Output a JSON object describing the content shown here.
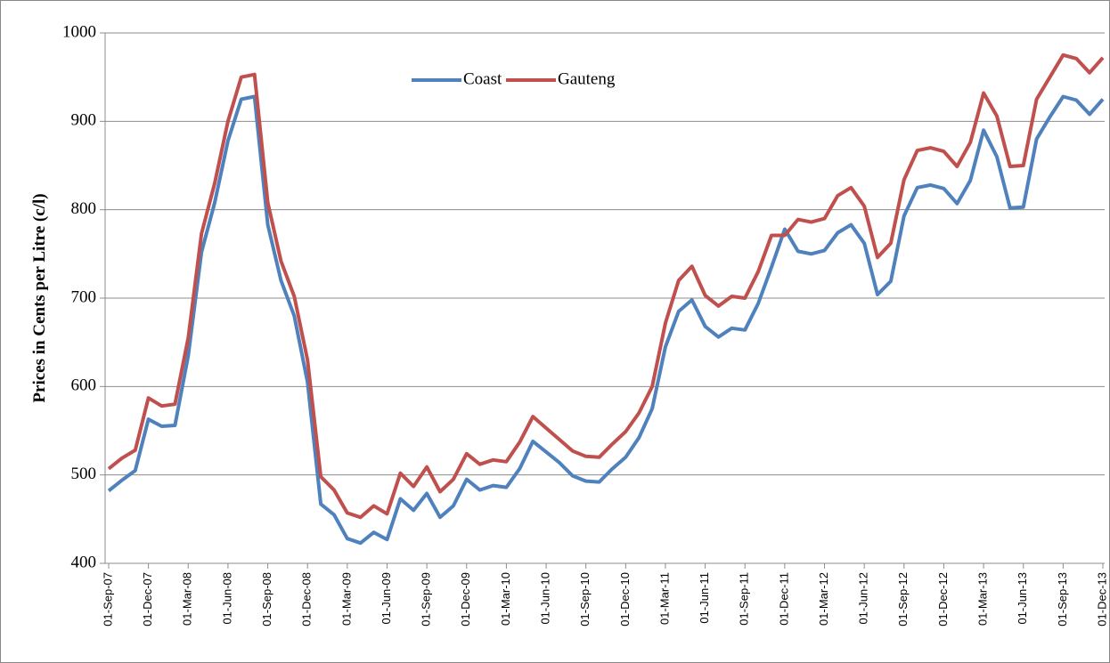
{
  "chart_data": {
    "type": "line",
    "y_label": "Prices in Cents per Litre (c/l)",
    "categories": [
      "01-Sep-07",
      null,
      null,
      "01-Dec-07",
      null,
      null,
      "01-Mar-08",
      null,
      null,
      "01-Jun-08",
      null,
      null,
      "01-Sep-08",
      null,
      null,
      "01-Dec-08",
      null,
      null,
      "01-Mar-09",
      null,
      null,
      "01-Jun-09",
      null,
      null,
      "01-Sep-09",
      null,
      null,
      "01-Dec-09",
      null,
      null,
      "01-Mar-10",
      null,
      null,
      "01-Jun-10",
      null,
      null,
      "01-Sep-10",
      null,
      null,
      "01-Dec-10",
      null,
      null,
      "01-Mar-11",
      null,
      null,
      "01-Jun-11",
      null,
      null,
      "01-Sep-11",
      null,
      null,
      "01-Dec-11",
      null,
      null,
      "01-Mar-12",
      null,
      null,
      "01-Jun-12",
      null,
      null,
      "01-Sep-12",
      null,
      null,
      "01-Dec-12",
      null,
      null,
      "01-Mar-13",
      null,
      null,
      "01-Jun-13",
      null,
      null,
      "01-Sep-13",
      null,
      null,
      "01-Dec-13"
    ],
    "series": [
      {
        "name": "Coast",
        "color": "#4f81bd",
        "values": [
          482,
          494,
          505,
          563,
          555,
          556,
          635,
          752,
          808,
          878,
          925,
          928,
          783,
          720,
          680,
          605,
          467,
          455,
          428,
          423,
          435,
          427,
          473,
          460,
          479,
          452,
          465,
          495,
          483,
          488,
          486,
          507,
          538,
          526,
          514,
          499,
          493,
          492,
          507,
          520,
          542,
          575,
          645,
          685,
          698,
          668,
          656,
          666,
          664,
          694,
          735,
          778,
          753,
          750,
          754,
          774,
          783,
          762,
          704,
          719,
          793,
          825,
          828,
          824,
          807,
          833,
          890,
          860,
          802,
          803,
          880,
          905,
          928,
          924,
          908,
          925
        ]
      },
      {
        "name": "Gauteng",
        "color": "#c0504d",
        "values": [
          507,
          519,
          528,
          587,
          578,
          580,
          655,
          773,
          830,
          900,
          950,
          953,
          808,
          742,
          702,
          630,
          498,
          483,
          457,
          452,
          465,
          456,
          502,
          487,
          509,
          481,
          495,
          524,
          512,
          517,
          515,
          537,
          566,
          553,
          540,
          527,
          521,
          520,
          535,
          549,
          570,
          600,
          672,
          720,
          736,
          703,
          691,
          702,
          700,
          730,
          771,
          771,
          789,
          786,
          790,
          816,
          825,
          804,
          746,
          762,
          834,
          867,
          870,
          866,
          849,
          876,
          932,
          906,
          849,
          850,
          925,
          950,
          975,
          971,
          955,
          972
        ]
      }
    ],
    "ylim": [
      400,
      1000
    ],
    "yticks": [
      400,
      500,
      600,
      700,
      800,
      900,
      1000
    ],
    "grid": true,
    "legend": "top"
  }
}
